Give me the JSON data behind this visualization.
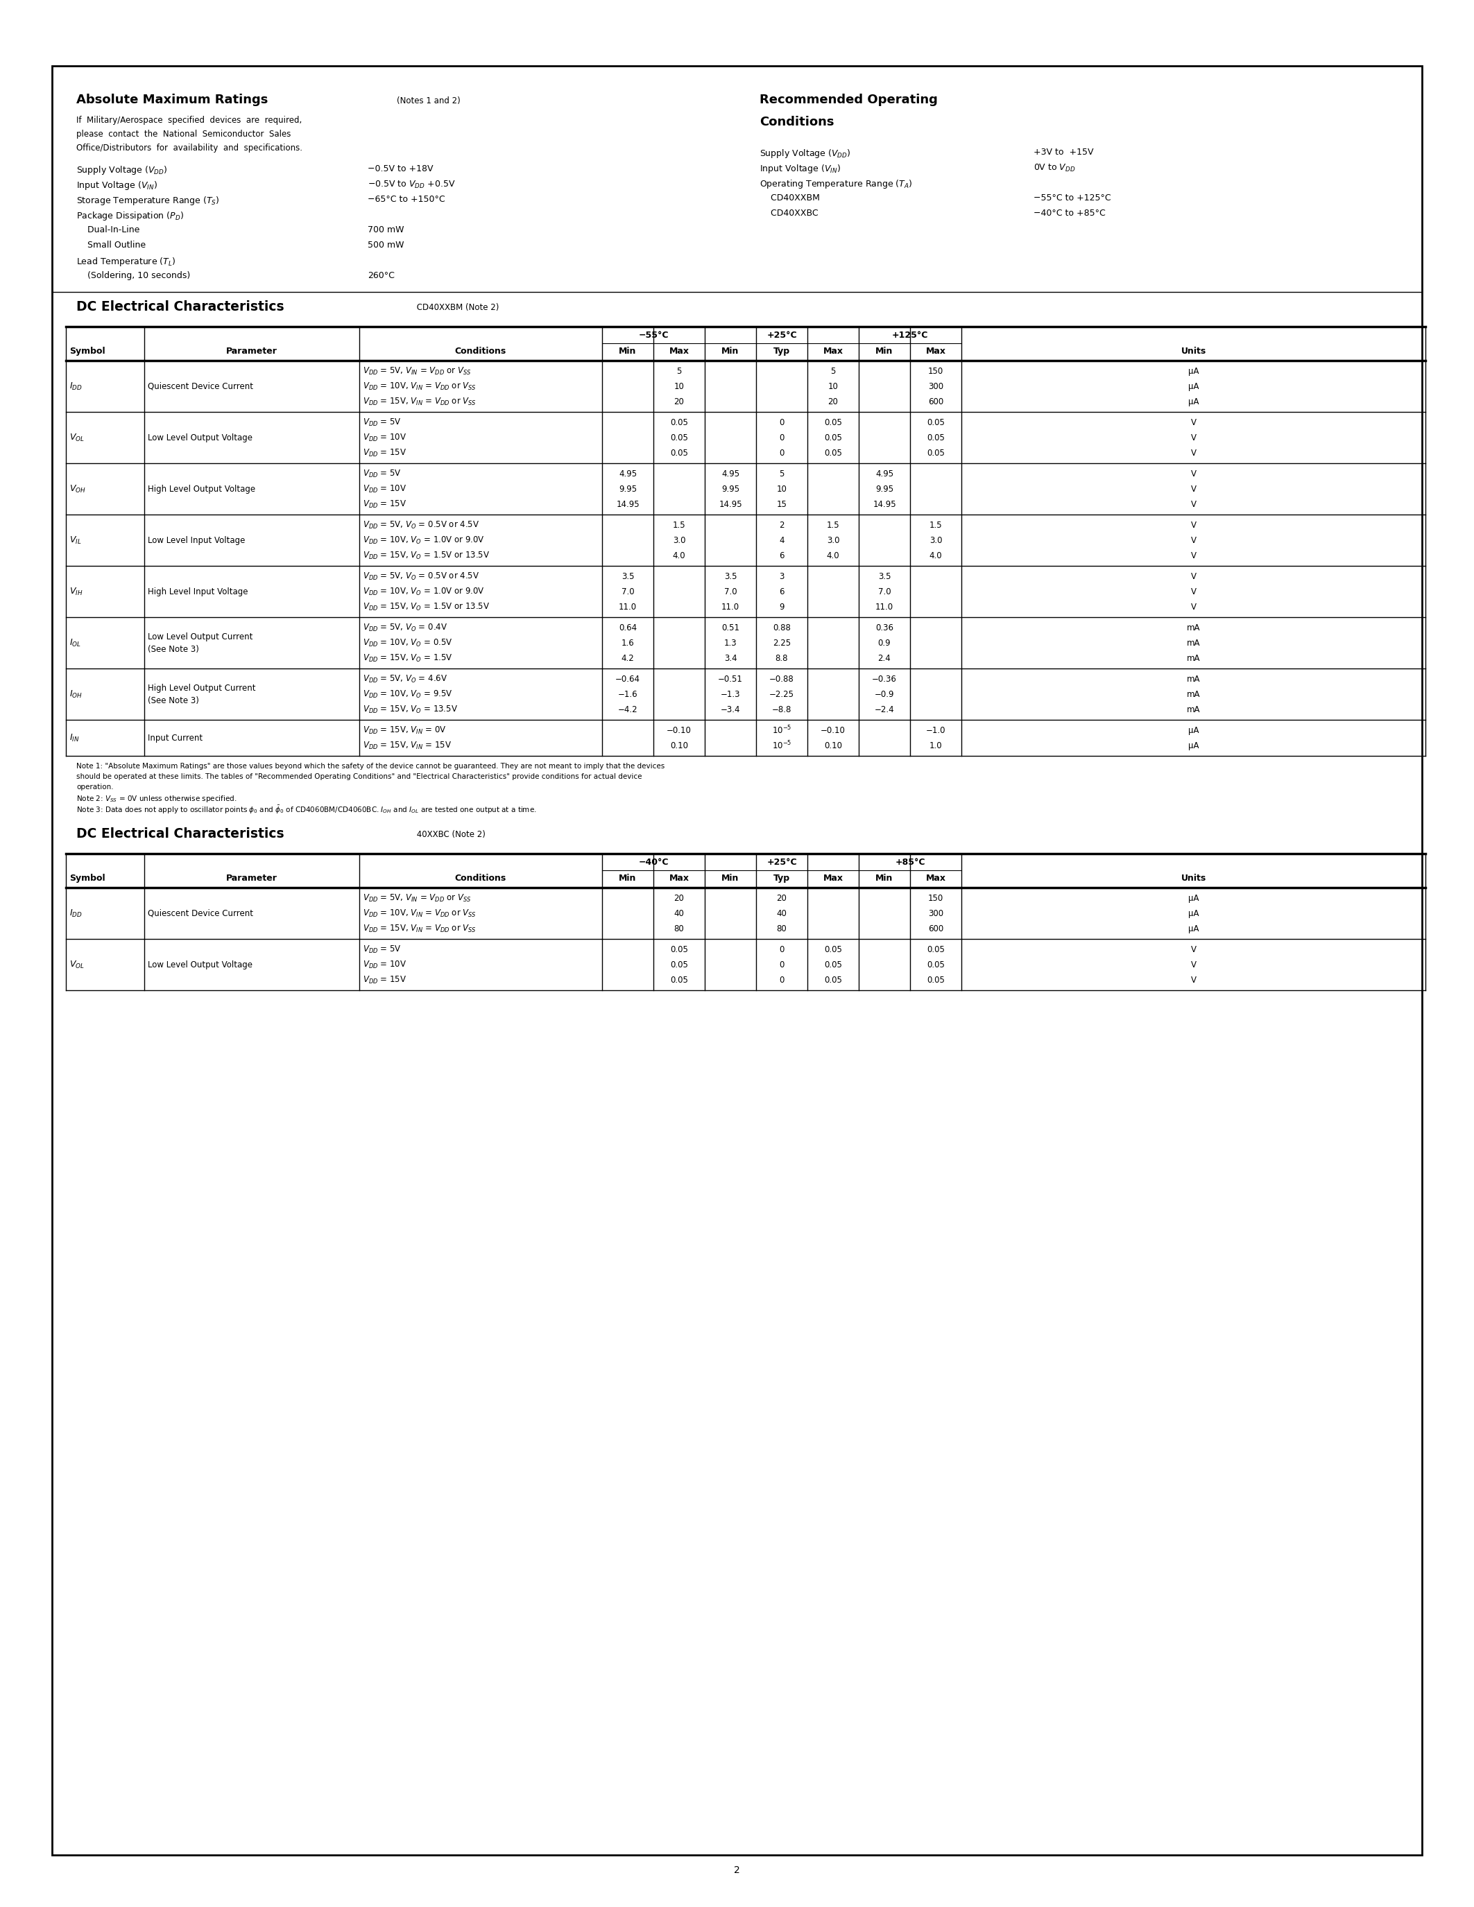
{
  "abs_max_title": "Absolute Maximum Ratings",
  "abs_max_notes": "(Notes 1 and 2)",
  "abs_max_warning": [
    "If  Military/Aerospace  specified  devices  are  required,",
    "please  contact  the  National  Semiconductor  Sales",
    "Office/Distributors  for  availability  and  specifications."
  ],
  "abs_max_items": [
    [
      "Supply Voltage ($V_{DD}$)",
      "−0.5V to +18V"
    ],
    [
      "Input Voltage ($V_{IN}$)",
      "−0.5V to $V_{DD}$ +0.5V"
    ],
    [
      "Storage Temperature Range ($T_S$)",
      "−65°C to +150°C"
    ],
    [
      "Package Dissipation ($P_D$)",
      ""
    ],
    [
      "    Dual-In-Line",
      "700 mW"
    ],
    [
      "    Small Outline",
      "500 mW"
    ],
    [
      "Lead Temperature ($T_L$)",
      ""
    ],
    [
      "    (Soldering, 10 seconds)",
      "260°C"
    ]
  ],
  "rec_title1": "Recommended Operating",
  "rec_title2": "Conditions",
  "rec_items": [
    [
      "Supply Voltage ($V_{DD}$)",
      "+3V to  +15V"
    ],
    [
      "Input Voltage ($V_{IN}$)",
      "0V to $V_{DD}$"
    ],
    [
      "Operating Temperature Range ($T_A$)",
      ""
    ],
    [
      "    CD40XXBM",
      "−55°C to +125°C"
    ],
    [
      "    CD40XXBC",
      "−40°C to +85°C"
    ]
  ],
  "dc1_title_bold": "DC Electrical Characteristics",
  "dc1_title_normal": " CD40XXBM (Note 2)",
  "dc1_temp_headers": [
    "−55°C",
    "+25°C",
    "+125°C"
  ],
  "dc1_rows": [
    {
      "symbol": "$I_{DD}$",
      "parameter": "Quiescent Device Current",
      "param2": "",
      "conditions": [
        "$V_{DD}$ = 5V, $V_{IN}$ = $V_{DD}$ or $V_{SS}$",
        "$V_{DD}$ = 10V, $V_{IN}$ = $V_{DD}$ or $V_{SS}$",
        "$V_{DD}$ = 15V, $V_{IN}$ = $V_{DD}$ or $V_{SS}$"
      ],
      "n55_min": [
        "",
        "",
        ""
      ],
      "n55_max": [
        "5",
        "10",
        "20"
      ],
      "p25_min": [
        "",
        "",
        ""
      ],
      "p25_typ": [
        "",
        "",
        ""
      ],
      "p25_max": [
        "5",
        "10",
        "20"
      ],
      "p125_min": [
        "",
        "",
        ""
      ],
      "p125_max": [
        "150",
        "300",
        "600"
      ],
      "units": [
        "μA",
        "μA",
        "μA"
      ]
    },
    {
      "symbol": "$V_{OL}$",
      "parameter": "Low Level Output Voltage",
      "param2": "",
      "conditions": [
        "$V_{DD}$ = 5V",
        "$V_{DD}$ = 10V",
        "$V_{DD}$ = 15V"
      ],
      "n55_min": [
        "",
        "",
        ""
      ],
      "n55_max": [
        "0.05",
        "0.05",
        "0.05"
      ],
      "p25_min": [
        "",
        "",
        ""
      ],
      "p25_typ": [
        "0",
        "0",
        "0"
      ],
      "p25_max": [
        "0.05",
        "0.05",
        "0.05"
      ],
      "p125_min": [
        "",
        "",
        ""
      ],
      "p125_max": [
        "0.05",
        "0.05",
        "0.05"
      ],
      "units": [
        "V",
        "V",
        "V"
      ]
    },
    {
      "symbol": "$V_{OH}$",
      "parameter": "High Level Output Voltage",
      "param2": "",
      "conditions": [
        "$V_{DD}$ = 5V",
        "$V_{DD}$ = 10V",
        "$V_{DD}$ = 15V"
      ],
      "n55_min": [
        "4.95",
        "9.95",
        "14.95"
      ],
      "n55_max": [
        "",
        "",
        ""
      ],
      "p25_min": [
        "4.95",
        "9.95",
        "14.95"
      ],
      "p25_typ": [
        "5",
        "10",
        "15"
      ],
      "p25_max": [
        "",
        "",
        ""
      ],
      "p125_min": [
        "4.95",
        "9.95",
        "14.95"
      ],
      "p125_max": [
        "",
        "",
        ""
      ],
      "units": [
        "V",
        "V",
        "V"
      ]
    },
    {
      "symbol": "$V_{IL}$",
      "parameter": "Low Level Input Voltage",
      "param2": "",
      "conditions": [
        "$V_{DD}$ = 5V, $V_O$ = 0.5V or 4.5V",
        "$V_{DD}$ = 10V, $V_O$ = 1.0V or 9.0V",
        "$V_{DD}$ = 15V, $V_O$ = 1.5V or 13.5V"
      ],
      "n55_min": [
        "",
        "",
        ""
      ],
      "n55_max": [
        "1.5",
        "3.0",
        "4.0"
      ],
      "p25_min": [
        "",
        "",
        ""
      ],
      "p25_typ": [
        "2",
        "4",
        "6"
      ],
      "p25_max": [
        "1.5",
        "3.0",
        "4.0"
      ],
      "p125_min": [
        "",
        "",
        ""
      ],
      "p125_max": [
        "1.5",
        "3.0",
        "4.0"
      ],
      "units": [
        "V",
        "V",
        "V"
      ]
    },
    {
      "symbol": "$V_{IH}$",
      "parameter": "High Level Input Voltage",
      "param2": "",
      "conditions": [
        "$V_{DD}$ = 5V, $V_O$ = 0.5V or 4.5V",
        "$V_{DD}$ = 10V, $V_O$ = 1.0V or 9.0V",
        "$V_{DD}$ = 15V, $V_O$ = 1.5V or 13.5V"
      ],
      "n55_min": [
        "3.5",
        "7.0",
        "11.0"
      ],
      "n55_max": [
        "",
        "",
        ""
      ],
      "p25_min": [
        "3.5",
        "7.0",
        "11.0"
      ],
      "p25_typ": [
        "3",
        "6",
        "9"
      ],
      "p25_max": [
        "",
        "",
        ""
      ],
      "p125_min": [
        "3.5",
        "7.0",
        "11.0"
      ],
      "p125_max": [
        "",
        "",
        ""
      ],
      "units": [
        "V",
        "V",
        "V"
      ]
    },
    {
      "symbol": "$I_{OL}$",
      "parameter": "Low Level Output Current",
      "param2": "(See Note 3)",
      "conditions": [
        "$V_{DD}$ = 5V, $V_O$ = 0.4V",
        "$V_{DD}$ = 10V, $V_O$ = 0.5V",
        "$V_{DD}$ = 15V, $V_O$ = 1.5V"
      ],
      "n55_min": [
        "0.64",
        "1.6",
        "4.2"
      ],
      "n55_max": [
        "",
        "",
        ""
      ],
      "p25_min": [
        "0.51",
        "1.3",
        "3.4"
      ],
      "p25_typ": [
        "0.88",
        "2.25",
        "8.8"
      ],
      "p25_max": [
        "",
        "",
        ""
      ],
      "p125_min": [
        "0.36",
        "0.9",
        "2.4"
      ],
      "p125_max": [
        "",
        "",
        ""
      ],
      "units": [
        "mA",
        "mA",
        "mA"
      ]
    },
    {
      "symbol": "$I_{OH}$",
      "parameter": "High Level Output Current",
      "param2": "(See Note 3)",
      "conditions": [
        "$V_{DD}$ = 5V, $V_O$ = 4.6V",
        "$V_{DD}$ = 10V, $V_O$ = 9.5V",
        "$V_{DD}$ = 15V, $V_O$ = 13.5V"
      ],
      "n55_min": [
        "−0.64",
        "−1.6",
        "−4.2"
      ],
      "n55_max": [
        "",
        "",
        ""
      ],
      "p25_min": [
        "−0.51",
        "−1.3",
        "−3.4"
      ],
      "p25_typ": [
        "−0.88",
        "−2.25",
        "−8.8"
      ],
      "p25_max": [
        "",
        "",
        ""
      ],
      "p125_min": [
        "−0.36",
        "−0.9",
        "−2.4"
      ],
      "p125_max": [
        "",
        "",
        ""
      ],
      "units": [
        "mA",
        "mA",
        "mA"
      ]
    },
    {
      "symbol": "$I_{IN}$",
      "parameter": "Input Current",
      "param2": "",
      "conditions": [
        "$V_{DD}$ = 15V, $V_{IN}$ = 0V",
        "$V_{DD}$ = 15V, $V_{IN}$ = 15V"
      ],
      "n55_min": [
        "",
        ""
      ],
      "n55_max": [
        "−0.10",
        "0.10"
      ],
      "p25_min": [
        "",
        ""
      ],
      "p25_typ": [
        "$10^{-5}$",
        "$10^{-5}$"
      ],
      "p25_max": [
        "−0.10",
        "0.10"
      ],
      "p125_min": [
        "",
        ""
      ],
      "p125_max": [
        "−1.0",
        "1.0"
      ],
      "units": [
        "μA",
        "μA"
      ]
    }
  ],
  "notes": [
    "Note 1: \"Absolute Maximum Ratings\" are those values beyond which the safety of the device cannot be guaranteed. They are not meant to imply that the devices",
    "should be operated at these limits. The tables of \"Recommended Operating Conditions\" and \"Electrical Characteristics\" provide conditions for actual device",
    "operation.",
    "Note 2: $V_{SS}$ = 0V unless otherwise specified.",
    "Note 3: Data does not apply to oscillator points $\\phi_0$ and $\\bar{\\phi}_0$ of CD4060BM/CD4060BC. $I_{OH}$ and $I_{OL}$ are tested one output at a time."
  ],
  "dc2_title_bold": "DC Electrical Characteristics",
  "dc2_title_normal": " 40XXBC (Note 2)",
  "dc2_temp_headers": [
    "−40°C",
    "+25°C",
    "+85°C"
  ],
  "dc2_rows": [
    {
      "symbol": "$I_{DD}$",
      "parameter": "Quiescent Device Current",
      "param2": "",
      "conditions": [
        "$V_{DD}$ = 5V, $V_{IN}$ = $V_{DD}$ or $V_{SS}$",
        "$V_{DD}$ = 10V, $V_{IN}$ = $V_{DD}$ or $V_{SS}$",
        "$V_{DD}$ = 15V, $V_{IN}$ = $V_{DD}$ or $V_{SS}$"
      ],
      "n40_min": [
        "",
        "",
        ""
      ],
      "n40_max": [
        "20",
        "40",
        "80"
      ],
      "p25_min": [
        "",
        "",
        ""
      ],
      "p25_typ": [
        "20",
        "40",
        "80"
      ],
      "p25_max": [
        "",
        "",
        ""
      ],
      "p85_min": [
        "",
        "",
        ""
      ],
      "p85_max": [
        "150",
        "300",
        "600"
      ],
      "units": [
        "μA",
        "μA",
        "μA"
      ]
    },
    {
      "symbol": "$V_{OL}$",
      "parameter": "Low Level Output Voltage",
      "param2": "",
      "conditions": [
        "$V_{DD}$ = 5V",
        "$V_{DD}$ = 10V",
        "$V_{DD}$ = 15V"
      ],
      "n40_min": [
        "",
        "",
        ""
      ],
      "n40_max": [
        "0.05",
        "0.05",
        "0.05"
      ],
      "p25_min": [
        "",
        "",
        ""
      ],
      "p25_typ": [
        "0",
        "0",
        "0"
      ],
      "p25_max": [
        "0.05",
        "0.05",
        "0.05"
      ],
      "p85_min": [
        "",
        "",
        ""
      ],
      "p85_max": [
        "0.05",
        "0.05",
        "0.05"
      ],
      "units": [
        "V",
        "V",
        "V"
      ]
    }
  ]
}
